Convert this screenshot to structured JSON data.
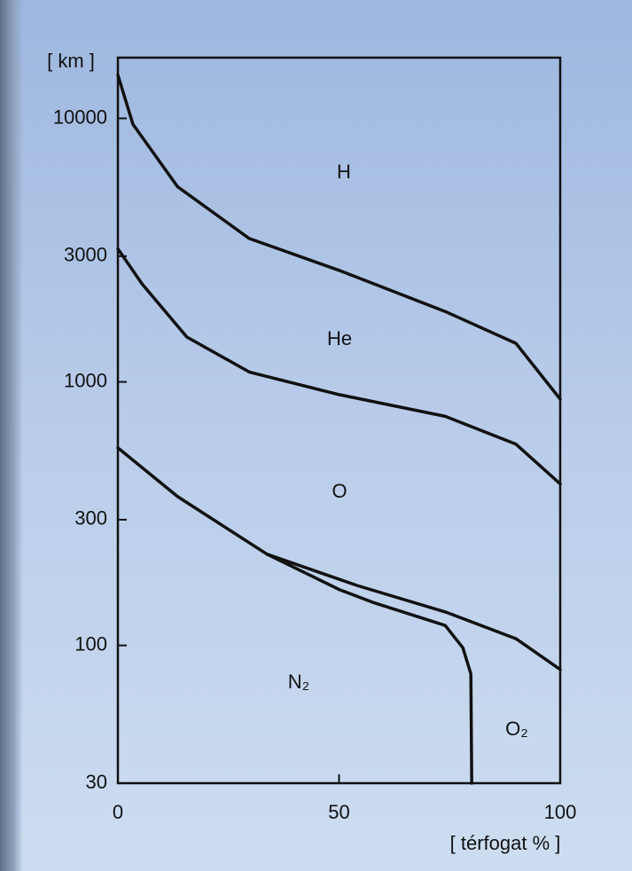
{
  "chart_data": {
    "type": "line",
    "y_label": "[ km ]",
    "x_label": "[ térfogat % ]",
    "xlim": [
      0,
      100
    ],
    "xticks": [
      0,
      50,
      100
    ],
    "ylim": [
      30,
      17000
    ],
    "yticks": [
      30,
      100,
      300,
      1000,
      3000,
      10000
    ],
    "y_scale": "log",
    "annotations": [
      "H",
      "He",
      "O",
      "N₂",
      "O₂"
    ],
    "series": [
      {
        "color": "#111111",
        "x": [
          0,
          3.4,
          13.5,
          29.7,
          50,
          74,
          90,
          100
        ],
        "values": [
          14600,
          9500,
          5500,
          3500,
          2650,
          1850,
          1400,
          860
        ]
      },
      {
        "color": "#111111",
        "x": [
          0,
          5.5,
          15.6,
          29.7,
          50,
          74,
          90,
          100
        ],
        "values": [
          3200,
          2350,
          1480,
          1090,
          895,
          740,
          580,
          410
        ]
      },
      {
        "color": "#111111",
        "x": [
          0,
          13.5,
          33.7,
          54,
          74,
          90,
          100
        ],
        "values": [
          562,
          367,
          222,
          169,
          134,
          106,
          81
        ]
      },
      {
        "color": "#111111",
        "x": [
          33.7,
          50,
          58,
          74,
          78,
          79.8,
          80
        ],
        "values": [
          222,
          163,
          145,
          119,
          98,
          78,
          30
        ]
      }
    ]
  }
}
